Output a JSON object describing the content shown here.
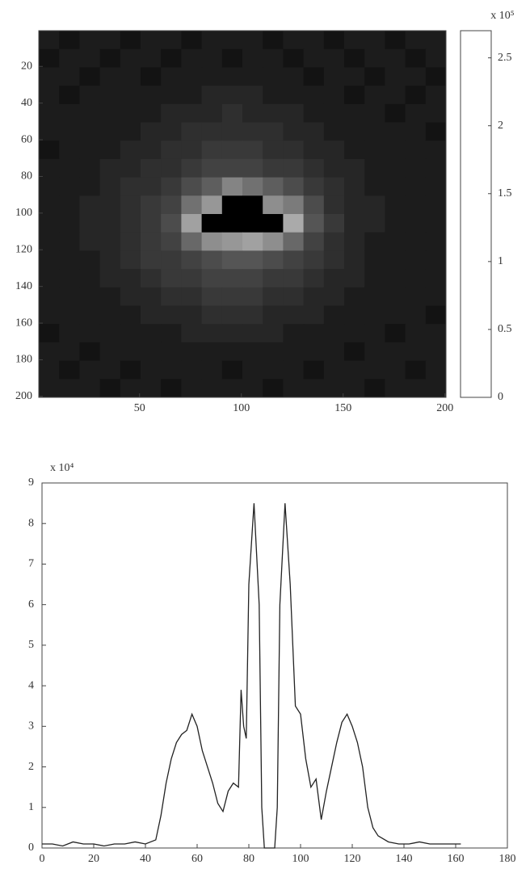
{
  "chart_data": [
    {
      "type": "heatmap",
      "colormap": "gray",
      "y_reversed": true,
      "xlim": [
        0.5,
        200.5
      ],
      "ylim": [
        0.5,
        200.5
      ],
      "xticks": [
        50,
        100,
        150,
        200
      ],
      "yticks": [
        20,
        40,
        60,
        80,
        100,
        120,
        140,
        160,
        180,
        200
      ],
      "x_edges": [
        0.5,
        10.5,
        20.5,
        30.5,
        40.5,
        50.5,
        60.5,
        70.5,
        80.5,
        90.5,
        100.5,
        110.5,
        120.5,
        130.5,
        140.5,
        150.5,
        160.5,
        170.5,
        180.5,
        190.5,
        200.5
      ],
      "y_edges": [
        0.5,
        10.5,
        20.5,
        30.5,
        40.5,
        50.5,
        60.5,
        70.5,
        80.5,
        90.5,
        100.5,
        110.5,
        120.5,
        130.5,
        140.5,
        150.5,
        160.5,
        170.5,
        180.5,
        190.5,
        200.5
      ],
      "z": [
        [
          0.3,
          0.2,
          0.3,
          0.3,
          0.2,
          0.3,
          0.3,
          0.2,
          0.3,
          0.3,
          0.3,
          0.2,
          0.3,
          0.3,
          0.2,
          0.3,
          0.3,
          0.2,
          0.3,
          0.3
        ],
        [
          0.2,
          0.3,
          0.3,
          0.2,
          0.3,
          0.3,
          0.2,
          0.3,
          0.3,
          0.2,
          0.3,
          0.3,
          0.2,
          0.3,
          0.3,
          0.2,
          0.3,
          0.3,
          0.2,
          0.3
        ],
        [
          0.3,
          0.3,
          0.2,
          0.3,
          0.3,
          0.2,
          0.3,
          0.3,
          0.3,
          0.3,
          0.3,
          0.3,
          0.3,
          0.2,
          0.3,
          0.3,
          0.2,
          0.3,
          0.3,
          0.2
        ],
        [
          0.3,
          0.2,
          0.3,
          0.3,
          0.3,
          0.3,
          0.3,
          0.3,
          0.4,
          0.4,
          0.4,
          0.3,
          0.3,
          0.3,
          0.3,
          0.2,
          0.3,
          0.3,
          0.2,
          0.3
        ],
        [
          0.3,
          0.3,
          0.3,
          0.3,
          0.3,
          0.3,
          0.4,
          0.4,
          0.4,
          0.5,
          0.4,
          0.4,
          0.4,
          0.3,
          0.3,
          0.3,
          0.3,
          0.2,
          0.3,
          0.3
        ],
        [
          0.3,
          0.3,
          0.3,
          0.3,
          0.3,
          0.4,
          0.4,
          0.5,
          0.5,
          0.5,
          0.5,
          0.5,
          0.4,
          0.4,
          0.3,
          0.3,
          0.3,
          0.3,
          0.3,
          0.2
        ],
        [
          0.2,
          0.3,
          0.3,
          0.3,
          0.4,
          0.4,
          0.5,
          0.5,
          0.6,
          0.6,
          0.6,
          0.5,
          0.5,
          0.4,
          0.4,
          0.3,
          0.3,
          0.3,
          0.3,
          0.3
        ],
        [
          0.3,
          0.3,
          0.3,
          0.4,
          0.4,
          0.5,
          0.5,
          0.6,
          0.7,
          0.7,
          0.7,
          0.6,
          0.6,
          0.5,
          0.4,
          0.4,
          0.3,
          0.3,
          0.3,
          0.3
        ],
        [
          0.3,
          0.3,
          0.3,
          0.4,
          0.5,
          0.5,
          0.6,
          0.8,
          1.0,
          1.4,
          1.2,
          1.0,
          0.8,
          0.6,
          0.5,
          0.4,
          0.3,
          0.3,
          0.3,
          0.3
        ],
        [
          0.3,
          0.3,
          0.4,
          0.4,
          0.5,
          0.6,
          0.7,
          1.2,
          1.6,
          0,
          0,
          1.5,
          1.3,
          0.8,
          0.5,
          0.4,
          0.4,
          0.3,
          0.3,
          0.3
        ],
        [
          0.3,
          0.3,
          0.4,
          0.4,
          0.5,
          0.6,
          0.8,
          1.7,
          0,
          0,
          0,
          0,
          1.8,
          0.9,
          0.6,
          0.4,
          0.4,
          0.3,
          0.3,
          0.3
        ],
        [
          0.3,
          0.3,
          0.4,
          0.4,
          0.5,
          0.6,
          0.7,
          1.1,
          1.5,
          1.6,
          1.7,
          1.5,
          1.1,
          0.7,
          0.5,
          0.4,
          0.3,
          0.3,
          0.3,
          0.3
        ],
        [
          0.3,
          0.3,
          0.3,
          0.4,
          0.5,
          0.6,
          0.6,
          0.7,
          0.8,
          0.9,
          0.9,
          0.8,
          0.7,
          0.6,
          0.5,
          0.4,
          0.3,
          0.3,
          0.3,
          0.3
        ],
        [
          0.3,
          0.3,
          0.3,
          0.4,
          0.4,
          0.5,
          0.6,
          0.6,
          0.7,
          0.7,
          0.7,
          0.6,
          0.6,
          0.5,
          0.4,
          0.4,
          0.3,
          0.3,
          0.3,
          0.3
        ],
        [
          0.3,
          0.3,
          0.3,
          0.3,
          0.4,
          0.4,
          0.5,
          0.5,
          0.6,
          0.6,
          0.6,
          0.5,
          0.5,
          0.4,
          0.4,
          0.3,
          0.3,
          0.3,
          0.3,
          0.3
        ],
        [
          0.3,
          0.3,
          0.3,
          0.3,
          0.3,
          0.4,
          0.4,
          0.4,
          0.5,
          0.5,
          0.5,
          0.4,
          0.4,
          0.4,
          0.3,
          0.3,
          0.3,
          0.3,
          0.3,
          0.2
        ],
        [
          0.2,
          0.3,
          0.3,
          0.3,
          0.3,
          0.3,
          0.3,
          0.4,
          0.4,
          0.4,
          0.4,
          0.4,
          0.3,
          0.3,
          0.3,
          0.3,
          0.3,
          0.2,
          0.3,
          0.3
        ],
        [
          0.3,
          0.3,
          0.2,
          0.3,
          0.3,
          0.3,
          0.3,
          0.3,
          0.3,
          0.3,
          0.3,
          0.3,
          0.3,
          0.3,
          0.3,
          0.2,
          0.3,
          0.3,
          0.3,
          0.3
        ],
        [
          0.3,
          0.2,
          0.3,
          0.3,
          0.2,
          0.3,
          0.3,
          0.3,
          0.3,
          0.2,
          0.3,
          0.3,
          0.3,
          0.2,
          0.3,
          0.3,
          0.3,
          0.3,
          0.2,
          0.3
        ],
        [
          0.3,
          0.3,
          0.3,
          0.2,
          0.3,
          0.3,
          0.2,
          0.3,
          0.3,
          0.3,
          0.3,
          0.2,
          0.3,
          0.3,
          0.3,
          0.3,
          0.2,
          0.3,
          0.3,
          0.3
        ]
      ],
      "zlim": [
        0,
        2.7
      ],
      "zticks": [
        0,
        0.5,
        1,
        1.5,
        2,
        2.5
      ],
      "colorbar_exponent": "x 10⁵"
    },
    {
      "type": "line",
      "color": "#222222",
      "y_exponent": "x 10⁴",
      "xlim": [
        0,
        180
      ],
      "ylim": [
        0,
        9
      ],
      "xticks": [
        0,
        20,
        40,
        60,
        80,
        100,
        120,
        140,
        160,
        180
      ],
      "yticks": [
        0,
        1,
        2,
        3,
        4,
        5,
        6,
        7,
        8,
        9
      ],
      "x": [
        0,
        4,
        8,
        12,
        16,
        20,
        24,
        28,
        32,
        36,
        40,
        44,
        46,
        48,
        50,
        52,
        54,
        56,
        58,
        60,
        62,
        64,
        66,
        68,
        70,
        72,
        74,
        76,
        77,
        78,
        79,
        80,
        82,
        84,
        85,
        86,
        90,
        91,
        92,
        94,
        96,
        98,
        100,
        102,
        104,
        106,
        108,
        110,
        112,
        114,
        116,
        118,
        120,
        122,
        124,
        126,
        128,
        130,
        134,
        138,
        142,
        146,
        150,
        154,
        158,
        162
      ],
      "values": [
        0.1,
        0.1,
        0.05,
        0.15,
        0.1,
        0.1,
        0.05,
        0.1,
        0.1,
        0.15,
        0.1,
        0.2,
        0.8,
        1.6,
        2.2,
        2.6,
        2.8,
        2.9,
        3.3,
        3.0,
        2.4,
        2.0,
        1.6,
        1.1,
        0.9,
        1.4,
        1.6,
        1.5,
        3.9,
        3.0,
        2.7,
        6.5,
        8.5,
        6.0,
        1.0,
        0,
        0,
        1.0,
        6.0,
        8.5,
        6.5,
        3.5,
        3.3,
        2.2,
        1.5,
        1.7,
        0.7,
        1.4,
        2.0,
        2.6,
        3.1,
        3.3,
        3.0,
        2.6,
        2.0,
        1.0,
        0.5,
        0.3,
        0.15,
        0.1,
        0.1,
        0.15,
        0.1,
        0.1,
        0.1,
        0.1
      ]
    }
  ]
}
